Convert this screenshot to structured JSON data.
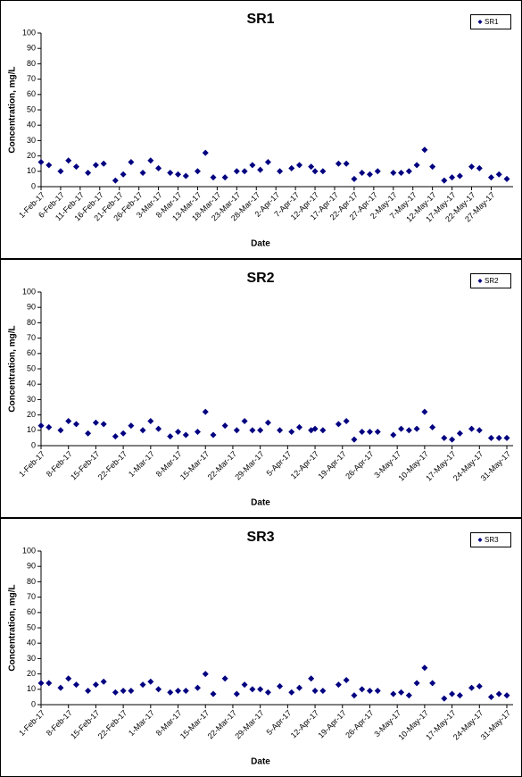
{
  "chart_data": [
    {
      "type": "scatter",
      "title": "SR1",
      "xlabel": "Date",
      "ylabel": "Concentration, mg/L",
      "legend": "upper right",
      "grid": false,
      "x": [
        "2017-02-01",
        "2017-02-03",
        "2017-02-06",
        "2017-02-08",
        "2017-02-10",
        "2017-02-13",
        "2017-02-15",
        "2017-02-17",
        "2017-02-20",
        "2017-02-22",
        "2017-02-24",
        "2017-02-27",
        "2017-03-01",
        "2017-03-03",
        "2017-03-06",
        "2017-03-08",
        "2017-03-10",
        "2017-03-13",
        "2017-03-15",
        "2017-03-17",
        "2017-03-20",
        "2017-03-23",
        "2017-03-25",
        "2017-03-27",
        "2017-03-29",
        "2017-03-31",
        "2017-04-03",
        "2017-04-06",
        "2017-04-08",
        "2017-04-11",
        "2017-04-12",
        "2017-04-14",
        "2017-04-18",
        "2017-04-20",
        "2017-04-22",
        "2017-04-24",
        "2017-04-26",
        "2017-04-28",
        "2017-05-02",
        "2017-05-04",
        "2017-05-06",
        "2017-05-08",
        "2017-05-10",
        "2017-05-12",
        "2017-05-15",
        "2017-05-17",
        "2017-05-19",
        "2017-05-22",
        "2017-05-24",
        "2017-05-27",
        "2017-05-29",
        "2017-05-31"
      ],
      "series": [
        {
          "name": "SR1",
          "color": "#000080",
          "values": [
            16,
            14,
            10,
            17,
            13,
            9,
            14,
            15,
            4,
            8,
            16,
            9,
            17,
            12,
            9,
            8,
            7,
            10,
            22,
            6,
            6,
            10,
            10,
            14,
            11,
            16,
            10,
            12,
            14,
            13,
            10,
            10,
            15,
            15,
            5,
            9,
            8,
            10,
            9,
            9,
            10,
            14,
            24,
            13,
            4,
            6,
            7,
            13,
            12,
            6,
            8,
            5
          ]
        }
      ],
      "xlim": [
        "2017-02-01",
        "2017-05-31"
      ],
      "xticks": [
        {
          "value": "2017-02-01",
          "label": "1-Feb-17"
        },
        {
          "value": "2017-02-06",
          "label": "6-Feb-17"
        },
        {
          "value": "2017-02-11",
          "label": "11-Feb-17"
        },
        {
          "value": "2017-02-16",
          "label": "16-Feb-17"
        },
        {
          "value": "2017-02-21",
          "label": "21-Feb-17"
        },
        {
          "value": "2017-02-26",
          "label": "26-Feb-17"
        },
        {
          "value": "2017-03-03",
          "label": "3-Mar-17"
        },
        {
          "value": "2017-03-08",
          "label": "8-Mar-17"
        },
        {
          "value": "2017-03-13",
          "label": "13-Mar-17"
        },
        {
          "value": "2017-03-18",
          "label": "18-Mar-17"
        },
        {
          "value": "2017-03-23",
          "label": "23-Mar-17"
        },
        {
          "value": "2017-03-28",
          "label": "28-Mar-17"
        },
        {
          "value": "2017-04-02",
          "label": "2-Apr-17"
        },
        {
          "value": "2017-04-07",
          "label": "7-Apr-17"
        },
        {
          "value": "2017-04-12",
          "label": "12-Apr-17"
        },
        {
          "value": "2017-04-17",
          "label": "17-Apr-17"
        },
        {
          "value": "2017-04-22",
          "label": "22-Apr-17"
        },
        {
          "value": "2017-04-27",
          "label": "27-Apr-17"
        },
        {
          "value": "2017-05-02",
          "label": "2-May-17"
        },
        {
          "value": "2017-05-07",
          "label": "7-May-17"
        },
        {
          "value": "2017-05-12",
          "label": "12-May-17"
        },
        {
          "value": "2017-05-17",
          "label": "17-May-17"
        },
        {
          "value": "2017-05-22",
          "label": "22-May-17"
        },
        {
          "value": "2017-05-27",
          "label": "27-May-17"
        }
      ],
      "ylim": [
        0,
        100
      ],
      "yticks": [
        0,
        10,
        20,
        30,
        40,
        50,
        60,
        70,
        80,
        90,
        100
      ]
    },
    {
      "type": "scatter",
      "title": "SR2",
      "xlabel": "Date",
      "ylabel": "Concentration, mg/L",
      "legend": "upper right",
      "grid": false,
      "x": [
        "2017-02-01",
        "2017-02-03",
        "2017-02-06",
        "2017-02-08",
        "2017-02-10",
        "2017-02-13",
        "2017-02-15",
        "2017-02-17",
        "2017-02-20",
        "2017-02-22",
        "2017-02-24",
        "2017-02-27",
        "2017-03-01",
        "2017-03-03",
        "2017-03-06",
        "2017-03-08",
        "2017-03-10",
        "2017-03-13",
        "2017-03-15",
        "2017-03-17",
        "2017-03-20",
        "2017-03-23",
        "2017-03-25",
        "2017-03-27",
        "2017-03-29",
        "2017-03-31",
        "2017-04-03",
        "2017-04-06",
        "2017-04-08",
        "2017-04-11",
        "2017-04-12",
        "2017-04-14",
        "2017-04-18",
        "2017-04-20",
        "2017-04-22",
        "2017-04-24",
        "2017-04-26",
        "2017-04-28",
        "2017-05-02",
        "2017-05-04",
        "2017-05-06",
        "2017-05-08",
        "2017-05-10",
        "2017-05-12",
        "2017-05-15",
        "2017-05-17",
        "2017-05-19",
        "2017-05-22",
        "2017-05-24",
        "2017-05-27",
        "2017-05-29",
        "2017-05-31"
      ],
      "series": [
        {
          "name": "SR2",
          "color": "#000080",
          "values": [
            13,
            12,
            10,
            16,
            14,
            8,
            15,
            14,
            6,
            8,
            13,
            10,
            16,
            11,
            6,
            9,
            7,
            9,
            22,
            7,
            13,
            10,
            16,
            10,
            10,
            15,
            10,
            9,
            12,
            10,
            11,
            10,
            14,
            16,
            4,
            9,
            9,
            9,
            7,
            11,
            10,
            11,
            22,
            12,
            5,
            4,
            8,
            11,
            10,
            5,
            5,
            5
          ]
        }
      ],
      "xlim": [
        "2017-02-01",
        "2017-05-31"
      ],
      "xticks": [
        {
          "value": "2017-02-01",
          "label": "1-Feb-17"
        },
        {
          "value": "2017-02-08",
          "label": "8-Feb-17"
        },
        {
          "value": "2017-02-15",
          "label": "15-Feb-17"
        },
        {
          "value": "2017-02-22",
          "label": "22-Feb-17"
        },
        {
          "value": "2017-03-01",
          "label": "1-Mar-17"
        },
        {
          "value": "2017-03-08",
          "label": "8-Mar-17"
        },
        {
          "value": "2017-03-15",
          "label": "15-Mar-17"
        },
        {
          "value": "2017-03-22",
          "label": "22-Mar-17"
        },
        {
          "value": "2017-03-29",
          "label": "29-Mar-17"
        },
        {
          "value": "2017-04-05",
          "label": "5-Apr-17"
        },
        {
          "value": "2017-04-12",
          "label": "12-Apr-17"
        },
        {
          "value": "2017-04-19",
          "label": "19-Apr-17"
        },
        {
          "value": "2017-04-26",
          "label": "26-Apr-17"
        },
        {
          "value": "2017-05-03",
          "label": "3-May-17"
        },
        {
          "value": "2017-05-10",
          "label": "10-May-17"
        },
        {
          "value": "2017-05-17",
          "label": "17-May-17"
        },
        {
          "value": "2017-05-24",
          "label": "24-May-17"
        },
        {
          "value": "2017-05-31",
          "label": "31-May-17"
        }
      ],
      "ylim": [
        0,
        100
      ],
      "yticks": [
        0,
        10,
        20,
        30,
        40,
        50,
        60,
        70,
        80,
        90,
        100
      ]
    },
    {
      "type": "scatter",
      "title": "SR3",
      "xlabel": "Date",
      "ylabel": "Concentration, mg/L",
      "legend": "upper right",
      "grid": false,
      "x": [
        "2017-02-01",
        "2017-02-03",
        "2017-02-06",
        "2017-02-08",
        "2017-02-10",
        "2017-02-13",
        "2017-02-15",
        "2017-02-17",
        "2017-02-20",
        "2017-02-22",
        "2017-02-24",
        "2017-02-27",
        "2017-03-01",
        "2017-03-03",
        "2017-03-06",
        "2017-03-08",
        "2017-03-10",
        "2017-03-13",
        "2017-03-15",
        "2017-03-17",
        "2017-03-20",
        "2017-03-23",
        "2017-03-25",
        "2017-03-27",
        "2017-03-29",
        "2017-03-31",
        "2017-04-03",
        "2017-04-06",
        "2017-04-08",
        "2017-04-11",
        "2017-04-12",
        "2017-04-14",
        "2017-04-18",
        "2017-04-20",
        "2017-04-22",
        "2017-04-24",
        "2017-04-26",
        "2017-04-28",
        "2017-05-02",
        "2017-05-04",
        "2017-05-06",
        "2017-05-08",
        "2017-05-10",
        "2017-05-12",
        "2017-05-15",
        "2017-05-17",
        "2017-05-19",
        "2017-05-22",
        "2017-05-24",
        "2017-05-27",
        "2017-05-29",
        "2017-05-31"
      ],
      "series": [
        {
          "name": "SR3",
          "color": "#000080",
          "values": [
            14,
            14,
            11,
            17,
            13,
            9,
            13,
            15,
            8,
            9,
            9,
            13,
            15,
            10,
            8,
            9,
            9,
            11,
            20,
            7,
            17,
            7,
            13,
            10,
            10,
            8,
            12,
            8,
            11,
            17,
            9,
            9,
            13,
            16,
            6,
            10,
            9,
            9,
            7,
            8,
            6,
            14,
            24,
            14,
            4,
            7,
            6,
            11,
            12,
            5,
            7,
            6
          ]
        }
      ],
      "xlim": [
        "2017-02-01",
        "2017-05-31"
      ],
      "xticks": [
        {
          "value": "2017-02-01",
          "label": "1-Feb-17"
        },
        {
          "value": "2017-02-08",
          "label": "8-Feb-17"
        },
        {
          "value": "2017-02-15",
          "label": "15-Feb-17"
        },
        {
          "value": "2017-02-22",
          "label": "22-Feb-17"
        },
        {
          "value": "2017-03-01",
          "label": "1-Mar-17"
        },
        {
          "value": "2017-03-08",
          "label": "8-Mar-17"
        },
        {
          "value": "2017-03-15",
          "label": "15-Mar-17"
        },
        {
          "value": "2017-03-22",
          "label": "22-Mar-17"
        },
        {
          "value": "2017-03-29",
          "label": "29-Mar-17"
        },
        {
          "value": "2017-04-05",
          "label": "5-Apr-17"
        },
        {
          "value": "2017-04-12",
          "label": "12-Apr-17"
        },
        {
          "value": "2017-04-19",
          "label": "19-Apr-17"
        },
        {
          "value": "2017-04-26",
          "label": "26-Apr-17"
        },
        {
          "value": "2017-05-03",
          "label": "3-May-17"
        },
        {
          "value": "2017-05-10",
          "label": "10-May-17"
        },
        {
          "value": "2017-05-17",
          "label": "17-May-17"
        },
        {
          "value": "2017-05-24",
          "label": "24-May-17"
        },
        {
          "value": "2017-05-31",
          "label": "31-May-17"
        }
      ],
      "ylim": [
        0,
        100
      ],
      "yticks": [
        0,
        10,
        20,
        30,
        40,
        50,
        60,
        70,
        80,
        90,
        100
      ]
    }
  ]
}
